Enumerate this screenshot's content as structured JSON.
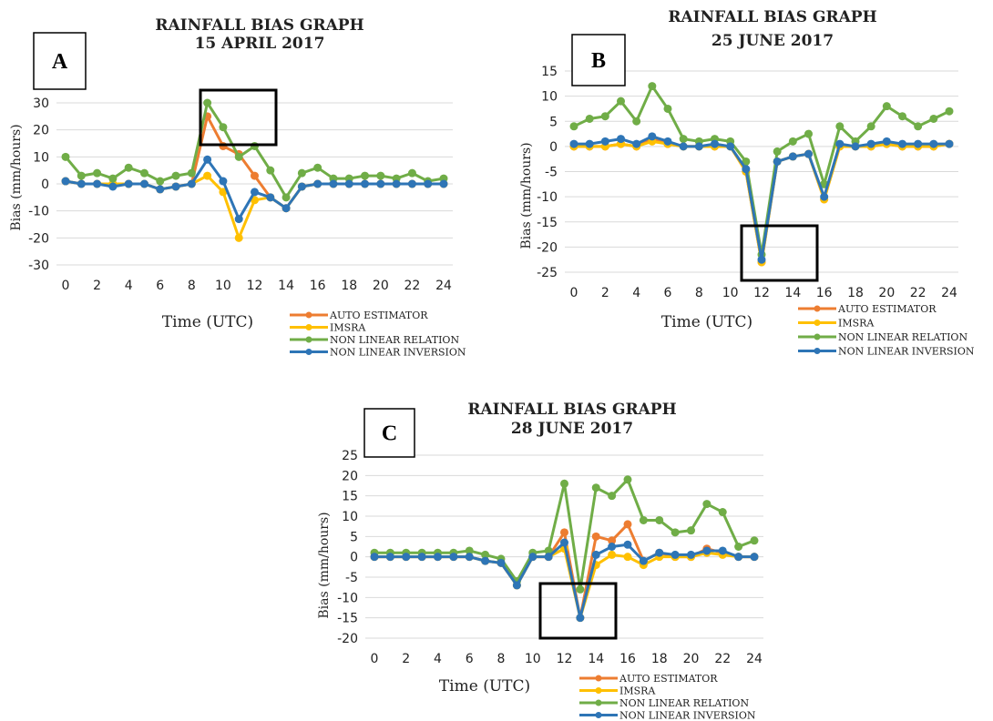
{
  "chart_data": [
    {
      "type": "line",
      "panel_label": "A",
      "title_line1": "RAINFALL BIAS GRAPH",
      "title_line2": "15 APRIL 2017",
      "xlabel": "Time (UTC)",
      "ylabel": "Bias (mm/hours)",
      "x": [
        0,
        1,
        2,
        3,
        4,
        5,
        6,
        7,
        8,
        9,
        10,
        11,
        12,
        13,
        14,
        15,
        16,
        17,
        18,
        19,
        20,
        21,
        22,
        23,
        24
      ],
      "xticks": [
        0,
        2,
        4,
        6,
        8,
        10,
        12,
        14,
        16,
        18,
        20,
        22,
        24
      ],
      "xticks_text": [
        "0",
        "2",
        "4",
        "6",
        "8",
        "10",
        "12",
        "14",
        "16",
        "18",
        "20",
        "22",
        "24"
      ],
      "yticks": [
        -30,
        -20,
        -10,
        0,
        10,
        20,
        30
      ],
      "yticks_text": [
        "-30",
        "-20",
        "-10",
        "0",
        "10",
        "20",
        "30"
      ],
      "ylim": [
        -30,
        30
      ],
      "extra_tick_text": "4",
      "grid": true,
      "legend_position": "bottom-right",
      "series": [
        {
          "name": "AUTO ESTIMATOR",
          "color": "#ed7d31",
          "values": [
            1,
            0,
            0,
            0,
            0,
            0,
            -2,
            -1,
            0,
            25,
            14,
            11,
            3,
            -5,
            -9,
            -1,
            0,
            0,
            0,
            0,
            0,
            0,
            0,
            0,
            0
          ]
        },
        {
          "name": "IMSRA",
          "color": "#ffc000",
          "values": [
            1,
            0,
            0,
            0,
            0,
            0,
            -2,
            -1,
            0,
            3,
            -3,
            -20,
            -6,
            -5,
            -9,
            -1,
            0,
            0,
            0,
            0,
            0,
            0,
            0,
            0,
            0
          ]
        },
        {
          "name": "NON LINEAR RELATION",
          "color": "#70ad47",
          "values": [
            10,
            3,
            4,
            2,
            6,
            4,
            1,
            3,
            4,
            30,
            21,
            10,
            14,
            5,
            -5,
            4,
            6,
            2,
            2,
            3,
            3,
            2,
            4,
            1,
            2
          ]
        },
        {
          "name": "NON LINEAR INVERSION",
          "color": "#2e75b6",
          "values": [
            1,
            0,
            0,
            -1,
            0,
            0,
            -2,
            -1,
            0,
            9,
            1,
            -13,
            -3,
            -5,
            -9,
            -1,
            0,
            0,
            0,
            0,
            0,
            0,
            0,
            0,
            0
          ]
        }
      ]
    },
    {
      "type": "line",
      "panel_label": "B",
      "title_line1": "RAINFALL BIAS GRAPH",
      "title_line2": "25 JUNE 2017",
      "xlabel": "Time (UTC)",
      "ylabel": "Bias (mm/hours)",
      "x": [
        0,
        1,
        2,
        3,
        4,
        5,
        6,
        7,
        8,
        9,
        10,
        11,
        12,
        13,
        14,
        15,
        16,
        17,
        18,
        19,
        20,
        21,
        22,
        23,
        24
      ],
      "xticks": [
        0,
        2,
        4,
        6,
        8,
        10,
        12,
        14,
        16,
        18,
        20,
        22,
        24
      ],
      "xticks_text": [
        "0",
        "2",
        "4",
        "6",
        "8",
        "10",
        "12",
        "14",
        "16",
        "18",
        "20",
        "22",
        "24"
      ],
      "yticks": [
        -25,
        -20,
        -15,
        -10,
        -5,
        0,
        5,
        10,
        15
      ],
      "yticks_text": [
        "-25",
        "-20",
        "-15",
        "-10",
        "-5",
        "0",
        "5",
        "10",
        "15"
      ],
      "ylim": [
        -25,
        15
      ],
      "grid": true,
      "legend_position": "bottom-right",
      "series": [
        {
          "name": "AUTO ESTIMATOR",
          "color": "#ed7d31",
          "values": [
            0,
            0,
            0,
            0.5,
            0,
            1.5,
            0.5,
            0,
            0,
            0,
            0,
            -5,
            -23,
            -3,
            -2,
            -1.5,
            -10.5,
            0,
            0,
            0,
            0.5,
            0,
            0,
            0,
            0.5
          ]
        },
        {
          "name": "IMSRA",
          "color": "#ffc000",
          "values": [
            0,
            0,
            0,
            0.5,
            0,
            1,
            0.5,
            0,
            0,
            0,
            0,
            -5,
            -23,
            -3,
            -2,
            -1.5,
            -10.5,
            0,
            0,
            0,
            0.5,
            0,
            0,
            0,
            0.5
          ]
        },
        {
          "name": "NON LINEAR RELATION",
          "color": "#70ad47",
          "values": [
            4,
            5.5,
            6,
            9,
            5,
            12,
            7.5,
            1.5,
            1,
            1.5,
            1,
            -3,
            -21.5,
            -1,
            1,
            2.5,
            -7.5,
            4,
            1,
            4,
            8,
            6,
            4,
            5.5,
            7
          ]
        },
        {
          "name": "NON LINEAR INVERSION",
          "color": "#2e75b6",
          "values": [
            0.5,
            0.5,
            1,
            1.5,
            0.5,
            2,
            1,
            0,
            0,
            0.5,
            0,
            -4.5,
            -22.5,
            -3,
            -2,
            -1.5,
            -10,
            0.5,
            0,
            0.5,
            1,
            0.5,
            0.5,
            0.5,
            0.5
          ]
        }
      ]
    },
    {
      "type": "line",
      "panel_label": "C",
      "title_line1": "RAINFALL BIAS GRAPH",
      "title_line2": "28 JUNE 2017",
      "xlabel": "Time (UTC)",
      "ylabel": "Bias (mm/hours)",
      "x": [
        0,
        1,
        2,
        3,
        4,
        5,
        6,
        7,
        8,
        9,
        10,
        11,
        12,
        13,
        14,
        15,
        16,
        17,
        18,
        19,
        20,
        21,
        22,
        23,
        24
      ],
      "xticks": [
        0,
        2,
        4,
        6,
        8,
        10,
        12,
        14,
        16,
        18,
        20,
        22,
        24
      ],
      "xticks_text": [
        "0",
        "2",
        "4",
        "6",
        "8",
        "10",
        "12",
        "14",
        "16",
        "18",
        "20",
        "22",
        "24"
      ],
      "yticks": [
        -20,
        -15,
        -10,
        -5,
        0,
        5,
        10,
        15,
        20,
        25
      ],
      "yticks_text": [
        "-20",
        "-15",
        "-10",
        "-5",
        "0",
        "5",
        "10",
        "15",
        "20",
        "25"
      ],
      "ylim": [
        -20,
        25
      ],
      "grid": true,
      "legend_position": "bottom-right",
      "series": [
        {
          "name": "AUTO ESTIMATOR",
          "color": "#ed7d31",
          "values": [
            0,
            0,
            0,
            0,
            0,
            0,
            0,
            -1,
            -1.5,
            -7,
            0,
            0,
            6,
            -15,
            5,
            4,
            8,
            -1,
            1,
            0,
            0,
            2,
            1,
            0,
            0
          ]
        },
        {
          "name": "IMSRA",
          "color": "#ffc000",
          "values": [
            0,
            0,
            0,
            0,
            0,
            0,
            0,
            -1,
            -1.5,
            -7,
            0,
            0,
            2,
            -15,
            -2,
            0.5,
            0,
            -2,
            0,
            0,
            0,
            1,
            0.5,
            0,
            0
          ]
        },
        {
          "name": "NON LINEAR RELATION",
          "color": "#70ad47",
          "values": [
            1,
            1,
            1,
            1,
            1,
            1,
            1.5,
            0.5,
            -0.5,
            -6,
            1,
            1.5,
            18,
            -8,
            17,
            15,
            19,
            9,
            9,
            6,
            6.5,
            13,
            11,
            2.5,
            4
          ]
        },
        {
          "name": "NON LINEAR INVERSION",
          "color": "#2e75b6",
          "values": [
            0,
            0,
            0,
            0,
            0,
            0,
            0,
            -1,
            -1.5,
            -7,
            0,
            0,
            3.5,
            -15,
            0.5,
            2.5,
            3,
            -1,
            1,
            0.5,
            0.5,
            1.5,
            1.5,
            0,
            0
          ]
        }
      ]
    }
  ]
}
